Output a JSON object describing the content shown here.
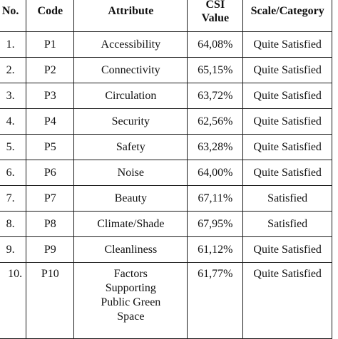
{
  "table": {
    "headers": {
      "no": "No.",
      "code": "Code",
      "attribute": "Attribute",
      "csi_line1": "CSI",
      "csi_line2": "Value",
      "scale": "Scale/Category"
    },
    "rows": [
      {
        "no": "1.",
        "code": "P1",
        "attribute": "Accessibility",
        "csi": "64,08%",
        "scale": "Quite Satisfied"
      },
      {
        "no": "2.",
        "code": "P2",
        "attribute": "Connectivity",
        "csi": "65,15%",
        "scale": "Quite Satisfied"
      },
      {
        "no": "3.",
        "code": "P3",
        "attribute": "Circulation",
        "csi": "63,72%",
        "scale": "Quite Satisfied"
      },
      {
        "no": "4.",
        "code": "P4",
        "attribute": "Security",
        "csi": "62,56%",
        "scale": "Quite Satisfied"
      },
      {
        "no": "5.",
        "code": "P5",
        "attribute": "Safety",
        "csi": "63,28%",
        "scale": "Quite Satisfied"
      },
      {
        "no": "6.",
        "code": "P6",
        "attribute": "Noise",
        "csi": "64,00%",
        "scale": "Quite Satisfied"
      },
      {
        "no": "7.",
        "code": "P7",
        "attribute": "Beauty",
        "csi": "67,11%",
        "scale": "Satisfied"
      },
      {
        "no": "8.",
        "code": "P8",
        "attribute": "Climate/Shade",
        "csi": "67,95%",
        "scale": "Satisfied"
      },
      {
        "no": "9.",
        "code": "P9",
        "attribute": "Cleanliness",
        "csi": "61,12%",
        "scale": "Quite Satisfied"
      },
      {
        "no": "10.",
        "code": "P10",
        "attribute_lines": [
          "Factors",
          "Supporting",
          "Public Green",
          "Space"
        ],
        "csi": "61,77%",
        "scale": "Quite Satisfied"
      }
    ]
  }
}
